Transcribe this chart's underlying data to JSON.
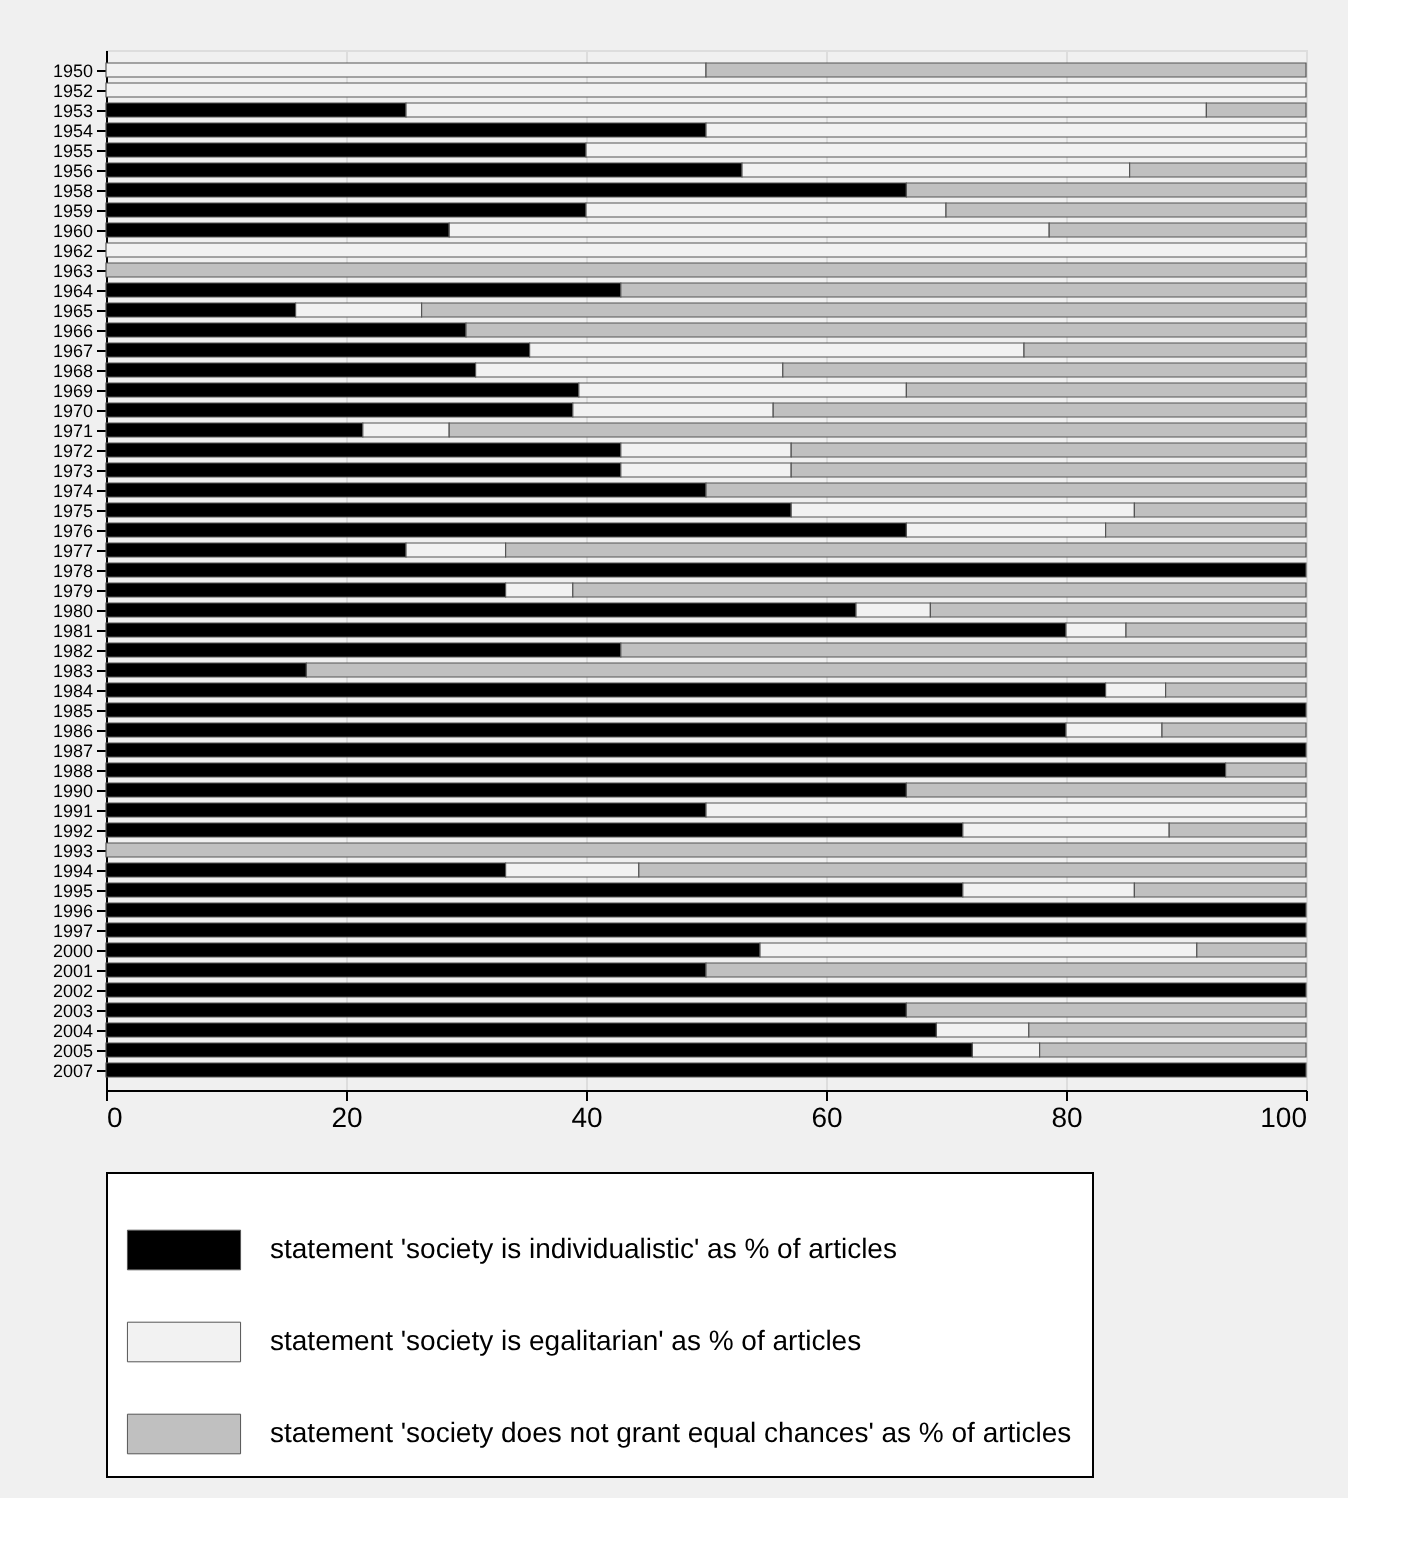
{
  "chart_data": {
    "type": "bar",
    "orientation": "horizontal",
    "stacked": true,
    "categories": [
      "1950",
      "1952",
      "1953",
      "1954",
      "1955",
      "1956",
      "1958",
      "1959",
      "1960",
      "1962",
      "1963",
      "1964",
      "1965",
      "1966",
      "1967",
      "1968",
      "1969",
      "1970",
      "1971",
      "1972",
      "1973",
      "1974",
      "1975",
      "1976",
      "1977",
      "1978",
      "1979",
      "1980",
      "1981",
      "1982",
      "1983",
      "1984",
      "1985",
      "1986",
      "1987",
      "1988",
      "1990",
      "1991",
      "1992",
      "1993",
      "1994",
      "1995",
      "1996",
      "1997",
      "2000",
      "2001",
      "2002",
      "2003",
      "2004",
      "2005",
      "2007"
    ],
    "series": [
      {
        "name": "statement 'society is individualistic' as % of articles",
        "color": "#000000",
        "values": [
          0,
          0,
          25,
          50,
          40,
          53,
          66.7,
          40,
          28.6,
          0,
          0,
          42.9,
          15.8,
          30,
          35.3,
          30.8,
          39.4,
          38.9,
          21.4,
          42.9,
          42.9,
          50,
          57.1,
          66.7,
          25,
          100,
          33.3,
          62.5,
          80,
          42.9,
          16.7,
          83.3,
          100,
          80,
          100,
          93.3,
          66.7,
          50,
          71.4,
          0,
          33.3,
          71.4,
          100,
          100,
          54.5,
          50,
          100,
          66.7,
          69.2,
          72.2,
          100
        ]
      },
      {
        "name": "statement 'society is egalitarian' as % of articles",
        "color": "#f2f2f2",
        "values": [
          50,
          100,
          66.7,
          50,
          60,
          32.3,
          0,
          30,
          50,
          100,
          0,
          0,
          10.5,
          0,
          41.2,
          25.6,
          27.3,
          16.7,
          7.2,
          14.2,
          14.2,
          0,
          28.6,
          16.6,
          8.3,
          0,
          5.6,
          6.2,
          5,
          0,
          0,
          5,
          0,
          8,
          0,
          0,
          0,
          50,
          17.2,
          0,
          11.1,
          14.3,
          0,
          0,
          36.4,
          0,
          0,
          0,
          7.7,
          5.6,
          0
        ]
      },
      {
        "name": "statement 'society does not grant equal chances' as % of articles",
        "color": "#c0c0c0",
        "values": [
          50,
          0,
          8.3,
          0,
          0,
          14.7,
          33.3,
          30,
          21.4,
          0,
          100,
          57.1,
          73.7,
          70,
          23.5,
          43.6,
          33.3,
          44.4,
          71.4,
          42.9,
          42.9,
          50,
          14.3,
          16.7,
          66.7,
          0,
          61.1,
          31.3,
          15,
          57.1,
          83.3,
          11.7,
          0,
          12,
          0,
          6.7,
          33.3,
          0,
          11.4,
          100,
          55.6,
          14.3,
          0,
          0,
          9.1,
          50,
          0,
          33.3,
          23.1,
          22.2,
          0
        ]
      }
    ],
    "xlim": [
      0,
      100
    ],
    "xticks": [
      0,
      20,
      40,
      60,
      80,
      100
    ],
    "grid": "x",
    "legend": "bottom"
  }
}
